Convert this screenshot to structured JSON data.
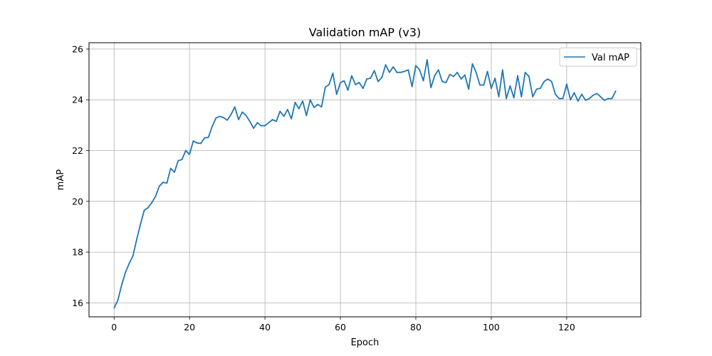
{
  "chart_data": {
    "type": "line",
    "title": "Validation mAP (v3)",
    "xlabel": "Epoch",
    "ylabel": "mAP",
    "xlim": [
      -6.65,
      139.65
    ],
    "ylim": [
      15.45,
      26.25
    ],
    "xticks": [
      0,
      20,
      40,
      60,
      80,
      100,
      120
    ],
    "yticks": [
      16,
      18,
      20,
      22,
      24,
      26
    ],
    "grid": true,
    "legend_position": "top-right",
    "series": [
      {
        "name": "Val mAP",
        "color": "#1f77b4",
        "x": [
          0,
          1,
          2,
          3,
          4,
          5,
          6,
          7,
          8,
          9,
          10,
          11,
          12,
          13,
          14,
          15,
          16,
          17,
          18,
          19,
          20,
          21,
          22,
          23,
          24,
          25,
          26,
          27,
          28,
          29,
          30,
          31,
          32,
          33,
          34,
          35,
          36,
          37,
          38,
          39,
          40,
          41,
          42,
          43,
          44,
          45,
          46,
          47,
          48,
          49,
          50,
          51,
          52,
          53,
          54,
          55,
          56,
          57,
          58,
          59,
          60,
          61,
          62,
          63,
          64,
          65,
          66,
          67,
          68,
          69,
          70,
          71,
          72,
          73,
          74,
          75,
          76,
          77,
          78,
          79,
          80,
          81,
          82,
          83,
          84,
          85,
          86,
          87,
          88,
          89,
          90,
          91,
          92,
          93,
          94,
          95,
          96,
          97,
          98,
          99,
          100,
          101,
          102,
          103,
          104,
          105,
          106,
          107,
          108,
          109,
          110,
          111,
          112,
          113,
          114,
          115,
          116,
          117,
          118,
          119,
          120,
          121,
          122,
          123,
          124,
          125,
          126,
          127,
          128,
          129,
          130,
          131,
          132,
          133
        ],
        "values": [
          15.8,
          16.1,
          16.7,
          17.2,
          17.55,
          17.85,
          18.5,
          19.1,
          19.65,
          19.75,
          19.95,
          20.2,
          20.6,
          20.75,
          20.72,
          21.3,
          21.15,
          21.6,
          21.65,
          22.0,
          21.85,
          22.38,
          22.3,
          22.28,
          22.5,
          22.52,
          22.95,
          23.28,
          23.35,
          23.3,
          23.2,
          23.42,
          23.72,
          23.22,
          23.52,
          23.38,
          23.15,
          22.88,
          23.1,
          22.98,
          22.98,
          23.1,
          23.22,
          23.15,
          23.55,
          23.35,
          23.62,
          23.25,
          23.9,
          23.65,
          23.95,
          23.38,
          24.0,
          23.7,
          23.82,
          23.72,
          24.5,
          24.6,
          25.05,
          24.22,
          24.68,
          24.75,
          24.38,
          24.95,
          24.6,
          24.68,
          24.45,
          24.82,
          24.85,
          25.15,
          24.72,
          24.88,
          25.38,
          25.08,
          25.3,
          25.08,
          25.08,
          25.12,
          25.18,
          24.52,
          25.35,
          25.18,
          24.75,
          25.58,
          24.48,
          24.95,
          25.18,
          24.72,
          24.68,
          25.0,
          24.92,
          25.08,
          24.82,
          24.98,
          24.42,
          25.42,
          25.08,
          24.58,
          24.58,
          25.12,
          24.45,
          24.85,
          24.12,
          25.18,
          24.05,
          24.55,
          24.08,
          24.95,
          24.12,
          25.08,
          24.92,
          24.12,
          24.42,
          24.45,
          24.72,
          24.82,
          24.72,
          24.22,
          24.05,
          24.05,
          24.62,
          24.0,
          24.28,
          23.95,
          24.22,
          23.98,
          24.05,
          24.18,
          24.25,
          24.12,
          23.98,
          24.05,
          24.05,
          24.35
        ]
      }
    ]
  }
}
